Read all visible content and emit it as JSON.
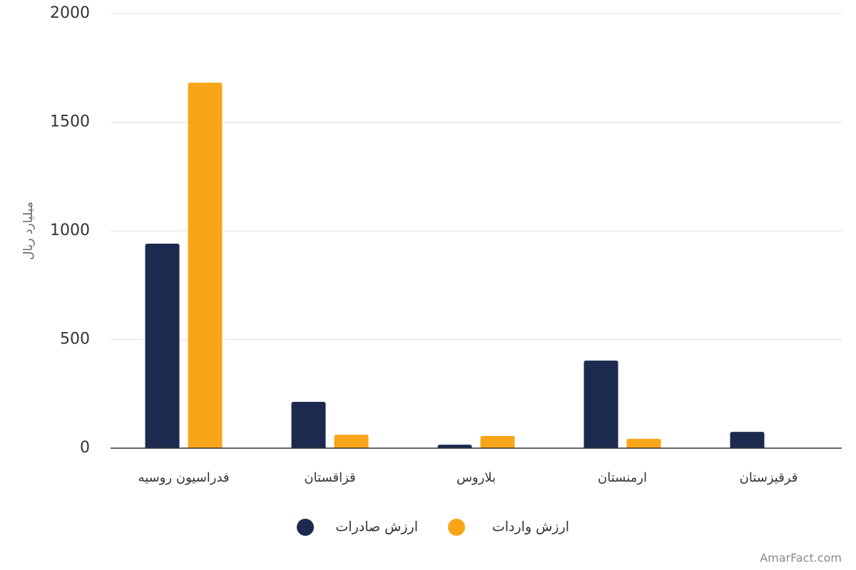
{
  "chart_data": {
    "type": "bar",
    "y_label": "میلیارد ریال",
    "categories": [
      "فدراسیون روسیه",
      "قزاقستان",
      "بلاروس",
      "ارمنستان",
      "قرقیزستان"
    ],
    "series": [
      {
        "name": "ارزش صادرات",
        "color": "#1b2a4e",
        "values": [
          941,
          213,
          16,
          403,
          75
        ]
      },
      {
        "name": "ارزش واردات",
        "color": "#f9a51a",
        "values": [
          1682,
          62,
          56,
          43,
          0
        ]
      }
    ],
    "ylim": [
      0,
      2000
    ],
    "yticks": [
      0,
      500,
      1000,
      1500,
      2000
    ],
    "grid": true,
    "watermark": "AmarFact.com"
  }
}
